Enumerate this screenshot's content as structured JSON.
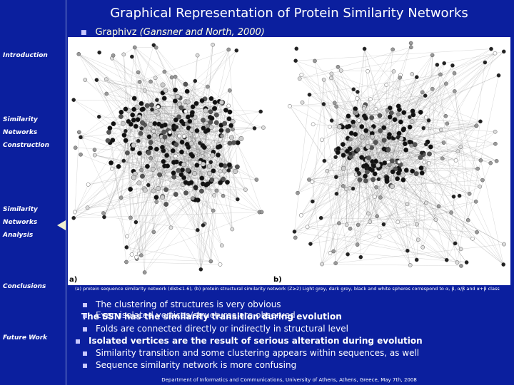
{
  "title": "Graphical Representation of Protein Similarity Networks",
  "sidebar": {
    "items": [
      {
        "lines": [
          "Introduction"
        ]
      },
      {
        "lines": [
          "Similarity",
          "Networks",
          "Construction"
        ]
      },
      {
        "lines": [
          "Similarity",
          "Networks",
          "Analysis"
        ]
      },
      {
        "lines": [
          "Conclusions"
        ]
      },
      {
        "lines": [
          "Future Work"
        ]
      }
    ]
  },
  "subheading": {
    "text": "Graphivz ",
    "citation": "(Gansner and North, 2000)"
  },
  "figure": {
    "label_a": "a)",
    "label_b": "b)"
  },
  "caption": "(a) protein sequence similarity network (dist≤1.6), (b) protein structural similarity network (Z≥2) Light grey, dark grey, black and white spheres correspond to α, β, α/β and α+β class",
  "bullets": {
    "b1": "The clustering of structures is very obvious",
    "b2a": "The SSN has the similarity transition during evolution",
    "b2b": "Even isolated vertices/structures are observed",
    "b3": "Folds are connected directly or indirectly in structural level",
    "b4": "Isolated vertices are the result of serious alteration during evolution",
    "b5": "Similarity transition and some clustering appears within sequences, as well",
    "b6": "Sequence similarity network is more confusing"
  },
  "footer": "Department of Informatics and Communications, University of Athens, Athens, Greece, May 7th, 2008",
  "colors": {
    "background": "#0b1f9e",
    "text": "#ffffff",
    "bullet": "#c8c8ff"
  }
}
